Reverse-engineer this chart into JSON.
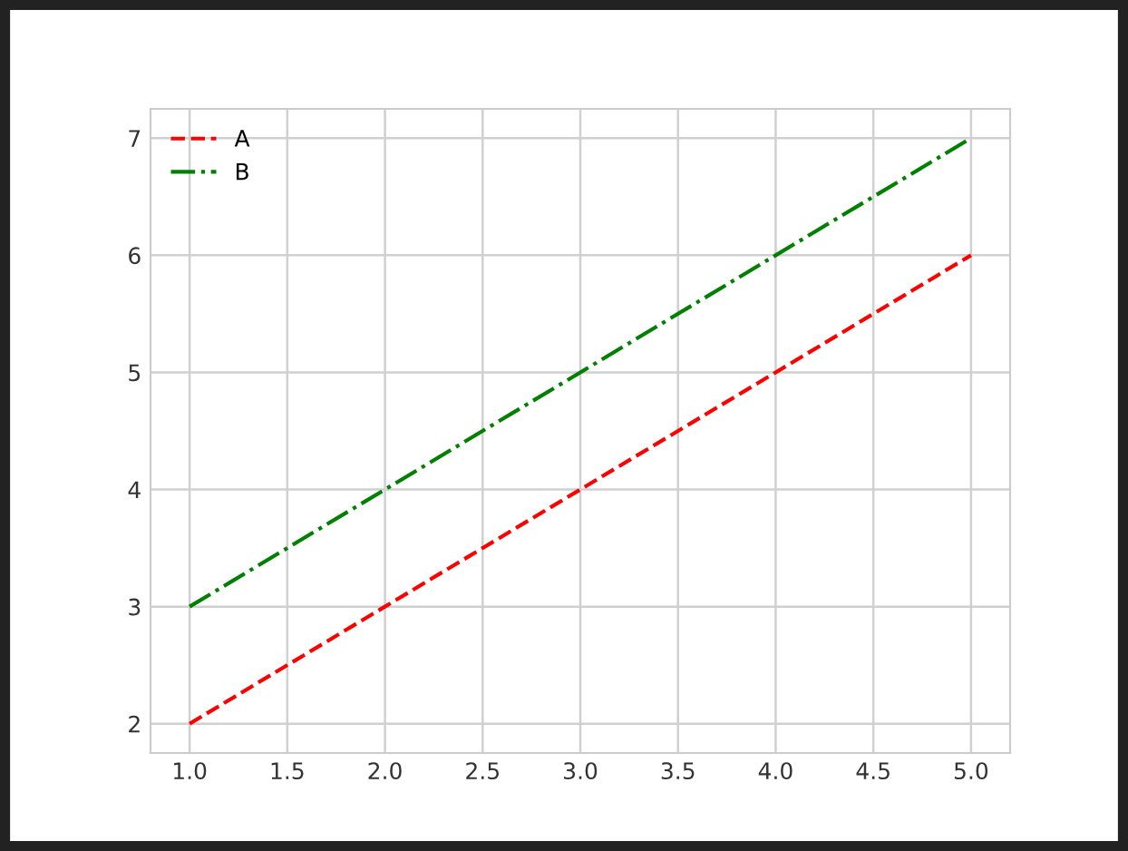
{
  "chart_data": {
    "type": "line",
    "x": [
      1,
      2,
      3,
      4,
      5
    ],
    "series": [
      {
        "name": "A",
        "color": "#ff0000",
        "values": [
          2,
          3,
          4,
          5,
          6
        ],
        "line_style": "dashed"
      },
      {
        "name": "B",
        "color": "#008000",
        "values": [
          3,
          4,
          5,
          6,
          7
        ],
        "line_style": "dashdot"
      }
    ],
    "xlim": [
      0.8,
      5.2
    ],
    "xticks": [
      {
        "value": 1,
        "label": "1.0"
      },
      {
        "value": 1.5,
        "label": "1.5"
      },
      {
        "value": 2,
        "label": "2.0"
      },
      {
        "value": 2.5,
        "label": "2.5"
      },
      {
        "value": 3,
        "label": "3.0"
      },
      {
        "value": 3.5,
        "label": "3.5"
      },
      {
        "value": 4,
        "label": "4.0"
      },
      {
        "value": 4.5,
        "label": "4.5"
      },
      {
        "value": 5,
        "label": "5.0"
      }
    ],
    "ylim": [
      1.75,
      7.25
    ],
    "yticks": [
      2,
      3,
      4,
      5,
      6,
      7
    ],
    "grid": true,
    "legend": "top left",
    "marker": "none"
  }
}
